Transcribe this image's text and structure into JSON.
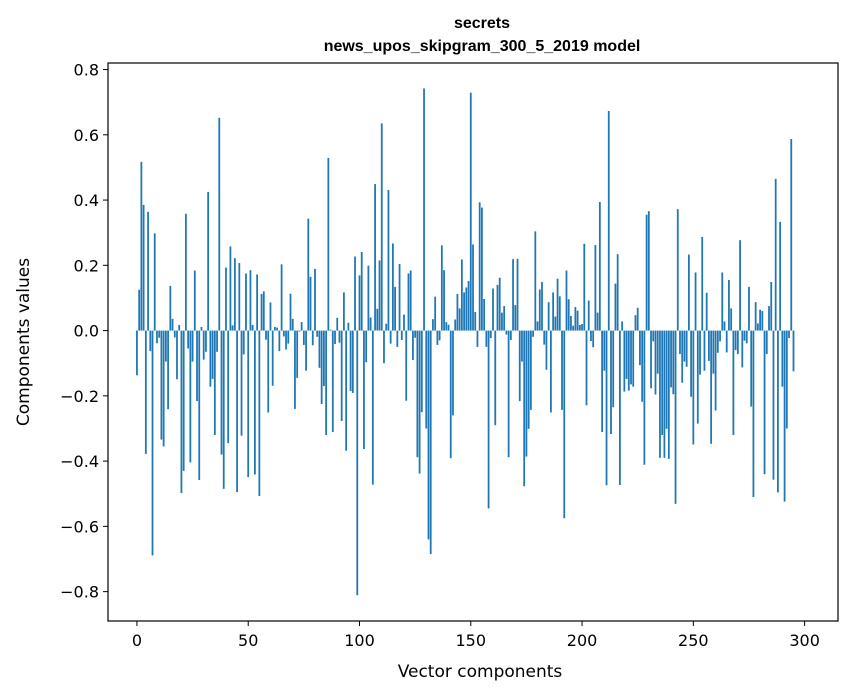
{
  "chart_data": {
    "type": "bar",
    "title": "secrets",
    "subtitle": "news_upos_skipgram_300_5_2019 model",
    "xlabel": "Vector components",
    "ylabel": "Components values",
    "xlim": [
      -13,
      315
    ],
    "ylim": [
      -0.89,
      0.82
    ],
    "xticks": [
      0,
      50,
      100,
      150,
      200,
      250,
      300
    ],
    "xtick_labels": [
      "0",
      "50",
      "100",
      "150",
      "200",
      "250",
      "300"
    ],
    "yticks": [
      -0.8,
      -0.6,
      -0.4,
      -0.2,
      0.0,
      0.2,
      0.4,
      0.6,
      0.8
    ],
    "ytick_labels": [
      "−0.8",
      "−0.6",
      "−0.4",
      "−0.2",
      "0.0",
      "0.2",
      "0.4",
      "0.6",
      "0.8"
    ],
    "grid": false,
    "bar_color": "#1f77b4",
    "x_start": 0,
    "values": [
      -0.137,
      0.125,
      0.517,
      0.385,
      -0.378,
      0.364,
      -0.063,
      -0.689,
      0.298,
      -0.039,
      -0.022,
      -0.334,
      -0.355,
      -0.095,
      -0.241,
      0.137,
      0.036,
      -0.021,
      -0.149,
      0.017,
      -0.498,
      -0.43,
      0.358,
      -0.055,
      -0.404,
      -0.095,
      0.184,
      -0.216,
      -0.458,
      0.011,
      -0.089,
      -0.065,
      0.425,
      -0.172,
      -0.148,
      -0.32,
      -0.065,
      0.652,
      -0.38,
      -0.485,
      0.193,
      -0.345,
      0.258,
      0.016,
      0.222,
      -0.495,
      0.207,
      -0.322,
      -0.073,
      0.175,
      -0.449,
      0.185,
      0.017,
      -0.441,
      0.172,
      -0.507,
      0.112,
      0.12,
      -0.028,
      -0.251,
      0.086,
      -0.169,
      0.011,
      0.009,
      -0.063,
      0.203,
      -0.018,
      -0.058,
      -0.04,
      0.113,
      0.036,
      -0.24,
      -0.145,
      -0.003,
      0.026,
      -0.044,
      -0.123,
      0.343,
      0.165,
      -0.045,
      0.189,
      -0.019,
      -0.114,
      -0.225,
      -0.17,
      -0.32,
      0.529,
      0.003,
      -0.311,
      -0.041,
      0.039,
      -0.037,
      -0.277,
      0.117,
      -0.368,
      0.024,
      -0.185,
      -0.191,
      0.227,
      -0.811,
      0.169,
      0.241,
      -0.363,
      -0.097,
      0.199,
      0.04,
      -0.472,
      0.449,
      0.067,
      0.215,
      0.635,
      -0.1,
      0.021,
      0.431,
      -0.04,
      0.267,
      0.134,
      -0.05,
      0.204,
      -0.029,
      0.049,
      -0.215,
      0.175,
      0.184,
      -0.09,
      -0.022,
      -0.388,
      -0.438,
      -0.25,
      0.742,
      -0.3,
      -0.64,
      -0.685,
      0.035,
      0.104,
      -0.044,
      -0.03,
      0.261,
      0.185,
      0.026,
      0.018,
      -0.391,
      -0.26,
      0.034,
      0.112,
      0.068,
      0.218,
      0.117,
      0.132,
      0.152,
      0.729,
      0.264,
      0.057,
      -0.05,
      0.393,
      0.377,
      0.097,
      -0.05,
      -0.545,
      -0.023,
      0.129,
      -0.29,
      0.14,
      0.162,
      0.055,
      0.075,
      -0.012,
      -0.388,
      -0.029,
      0.219,
      0.078,
      0.22,
      -0.216,
      -0.095,
      -0.477,
      -0.386,
      -0.301,
      -0.243,
      -0.019,
      0.304,
      0.028,
      0.126,
      0.149,
      -0.043,
      -0.12,
      0.087,
      -0.251,
      0.117,
      0.043,
      0.159,
      0.105,
      -0.243,
      -0.575,
      0.184,
      0.096,
      0.045,
      0.015,
      0.072,
      0.061,
      0.017,
      0.02,
      0.266,
      -0.229,
      0.092,
      -0.032,
      -0.051,
      0.262,
      0.055,
      0.394,
      -0.311,
      -0.123,
      -0.474,
      0.673,
      -0.317,
      -0.235,
      0.144,
      0.234,
      -0.473,
      0.028,
      -0.187,
      -0.148,
      -0.184,
      -0.165,
      -0.172,
      0.047,
      0.07,
      -0.106,
      -0.218,
      -0.411,
      0.355,
      0.366,
      -0.177,
      -0.033,
      -0.196,
      -0.132,
      -0.39,
      -0.32,
      -0.39,
      -0.301,
      -0.393,
      -0.174,
      -0.195,
      -0.531,
      0.372,
      -0.072,
      -0.16,
      -0.095,
      -0.111,
      0.233,
      -0.203,
      -0.349,
      0.178,
      -0.285,
      -0.135,
      0.287,
      -0.123,
      0.116,
      -0.093,
      -0.347,
      -0.132,
      -0.245,
      -0.068,
      -0.033,
      0.178,
      0.028,
      -0.067,
      0.155,
      0.068,
      -0.32,
      -0.06,
      -0.072,
      0.277,
      -0.113,
      -0.031,
      -0.039,
      0.134,
      -0.233,
      -0.51,
      0.087,
      0.022,
      0.064,
      0.06,
      -0.44,
      -0.072,
      0.075,
      0.149,
      -0.457,
      0.465,
      -0.496,
      0.333,
      -0.172,
      -0.524,
      -0.3,
      -0.023,
      0.587,
      -0.125
    ]
  }
}
